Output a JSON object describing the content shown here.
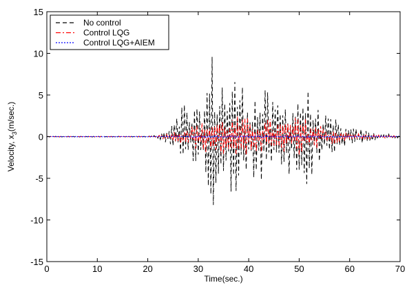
{
  "chart_data": {
    "type": "line",
    "xlabel": "Time(sec.)",
    "ylabel_main": "Velocity, x",
    "ylabel_sub": "3",
    "ylabel_unit": "(m/sec.)",
    "xlim": [
      0,
      70
    ],
    "ylim": [
      -15,
      15
    ],
    "xticks": [
      0,
      10,
      20,
      30,
      40,
      50,
      60,
      70
    ],
    "yticks": [
      -15,
      -10,
      -5,
      0,
      5,
      10,
      15
    ],
    "grid": false,
    "legend_position": "top-left",
    "sample_step": 0.25,
    "series": [
      {
        "name": "No control",
        "color": "#000000",
        "dash": "dashed",
        "envelope": [
          [
            0,
            0.05
          ],
          [
            20,
            0.05
          ],
          [
            22,
            0.25
          ],
          [
            24,
            0.8
          ],
          [
            26,
            2.5
          ],
          [
            27,
            4.7
          ],
          [
            28,
            3.0
          ],
          [
            29,
            3.8
          ],
          [
            30,
            3.2
          ],
          [
            31,
            4.0
          ],
          [
            32,
            8.0
          ],
          [
            33,
            11.0
          ],
          [
            34,
            6.0
          ],
          [
            35,
            8.5
          ],
          [
            36,
            6.0
          ],
          [
            37,
            7.5
          ],
          [
            38,
            8.0
          ],
          [
            39,
            6.0
          ],
          [
            40,
            5.5
          ],
          [
            41,
            6.0
          ],
          [
            42,
            4.5
          ],
          [
            43,
            6.5
          ],
          [
            44,
            5.0
          ],
          [
            45,
            4.0
          ],
          [
            46,
            4.5
          ],
          [
            47,
            4.0
          ],
          [
            48,
            5.5
          ],
          [
            49,
            4.5
          ],
          [
            50,
            6.0
          ],
          [
            51,
            6.5
          ],
          [
            52,
            5.5
          ],
          [
            53,
            4.5
          ],
          [
            54,
            3.0
          ],
          [
            55,
            3.0
          ],
          [
            56,
            2.0
          ],
          [
            57,
            2.5
          ],
          [
            58,
            1.5
          ],
          [
            59,
            1.2
          ],
          [
            60,
            1.0
          ],
          [
            62,
            1.0
          ],
          [
            64,
            0.6
          ],
          [
            66,
            0.4
          ],
          [
            68,
            0.3
          ],
          [
            70,
            0.2
          ]
        ]
      },
      {
        "name": "Control LQG",
        "color": "#ff0000",
        "dash": "dashdot",
        "envelope": [
          [
            0,
            0.02
          ],
          [
            20,
            0.03
          ],
          [
            22,
            0.15
          ],
          [
            24,
            0.4
          ],
          [
            26,
            0.9
          ],
          [
            28,
            1.3
          ],
          [
            30,
            1.6
          ],
          [
            32,
            2.0
          ],
          [
            34,
            2.3
          ],
          [
            36,
            2.3
          ],
          [
            38,
            2.5
          ],
          [
            40,
            2.2
          ],
          [
            42,
            2.0
          ],
          [
            44,
            2.2
          ],
          [
            46,
            1.8
          ],
          [
            48,
            2.0
          ],
          [
            50,
            2.5
          ],
          [
            52,
            2.0
          ],
          [
            54,
            1.5
          ],
          [
            56,
            1.0
          ],
          [
            58,
            0.7
          ],
          [
            60,
            0.5
          ],
          [
            63,
            0.3
          ],
          [
            66,
            0.2
          ],
          [
            70,
            0.12
          ]
        ]
      },
      {
        "name": "Control LQG+AIEM",
        "color": "#0000ff",
        "dash": "dotted",
        "envelope": [
          [
            0,
            0.02
          ],
          [
            20,
            0.02
          ],
          [
            25,
            0.05
          ],
          [
            30,
            0.1
          ],
          [
            40,
            0.12
          ],
          [
            50,
            0.1
          ],
          [
            60,
            0.07
          ],
          [
            70,
            0.05
          ]
        ]
      }
    ]
  }
}
